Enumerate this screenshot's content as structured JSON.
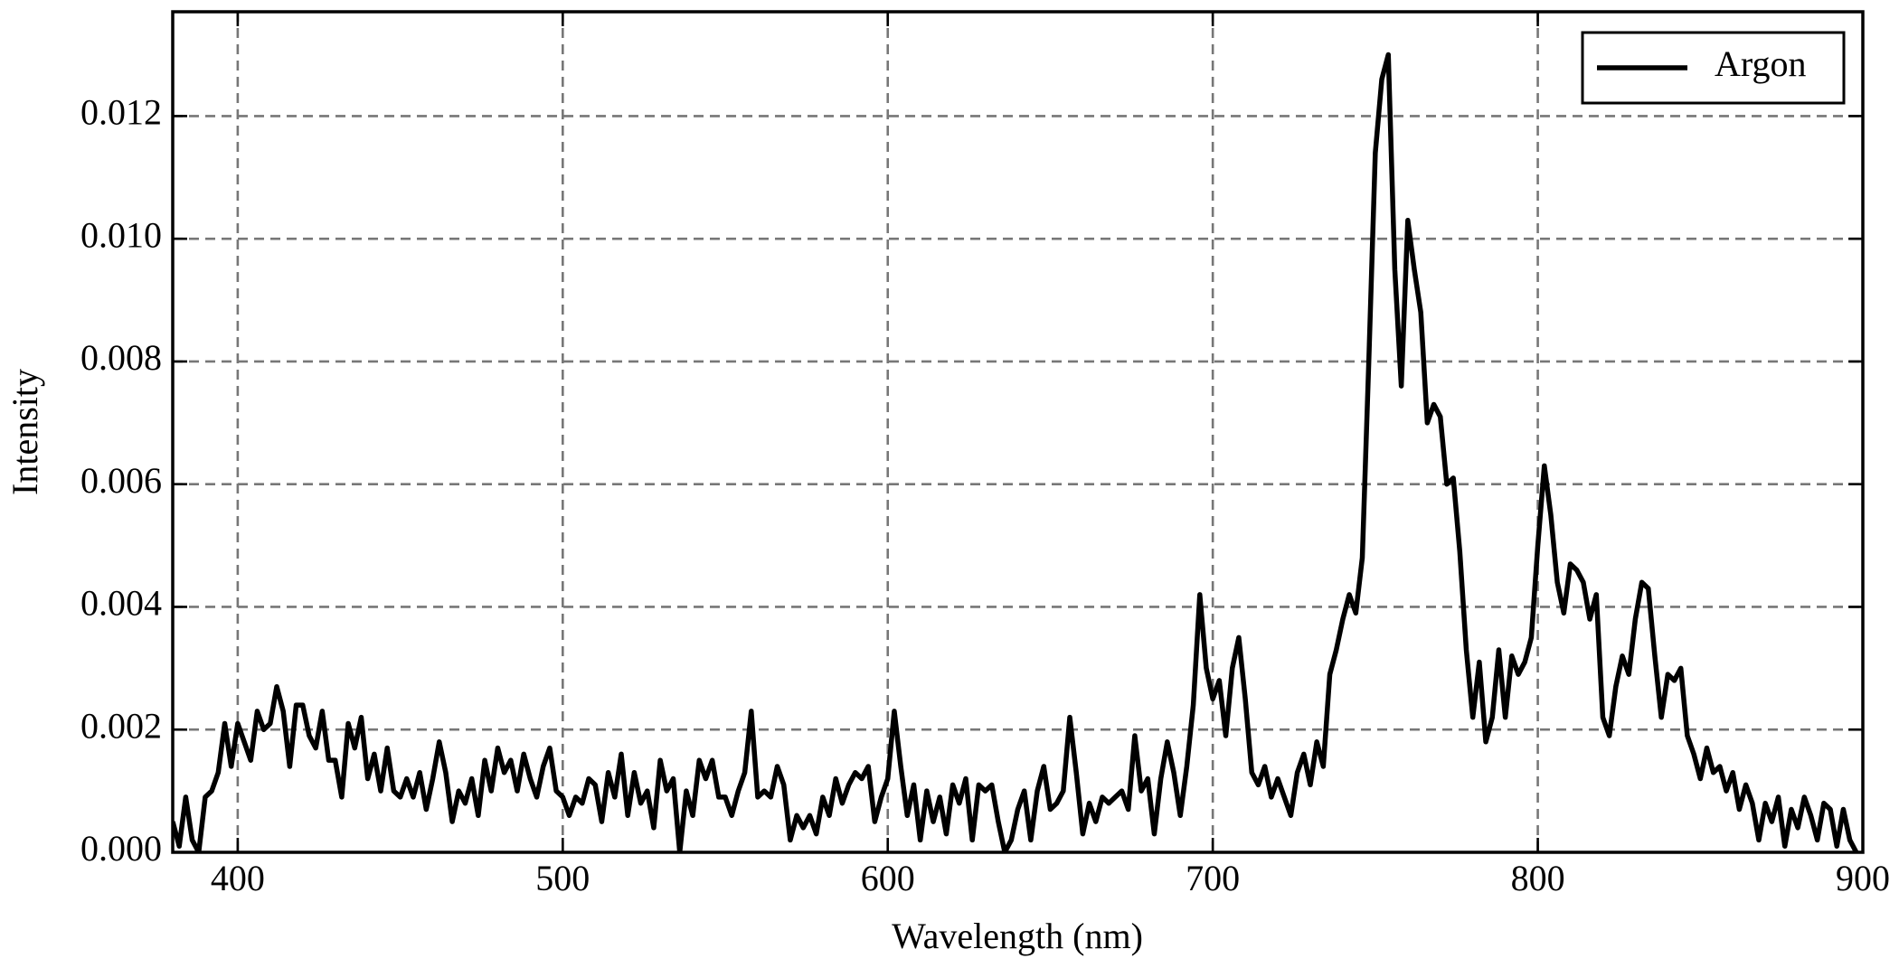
{
  "chart_data": {
    "type": "line",
    "xlabel": "Wavelength (nm)",
    "ylabel": "Intensity",
    "x": [
      380,
      382,
      384,
      386,
      388,
      390,
      392,
      394,
      396,
      398,
      400,
      402,
      404,
      406,
      408,
      410,
      412,
      414,
      416,
      418,
      420,
      422,
      424,
      426,
      428,
      430,
      432,
      434,
      436,
      438,
      440,
      442,
      444,
      446,
      448,
      450,
      452,
      454,
      456,
      458,
      460,
      462,
      464,
      466,
      468,
      470,
      472,
      474,
      476,
      478,
      480,
      482,
      484,
      486,
      488,
      490,
      492,
      494,
      496,
      498,
      500,
      502,
      504,
      506,
      508,
      510,
      512,
      514,
      516,
      518,
      520,
      522,
      524,
      526,
      528,
      530,
      532,
      534,
      536,
      538,
      540,
      542,
      544,
      546,
      548,
      550,
      552,
      554,
      556,
      558,
      560,
      562,
      564,
      566,
      568,
      570,
      572,
      574,
      576,
      578,
      580,
      582,
      584,
      586,
      588,
      590,
      592,
      594,
      596,
      598,
      600,
      602,
      604,
      606,
      608,
      610,
      612,
      614,
      616,
      618,
      620,
      622,
      624,
      626,
      628,
      630,
      632,
      634,
      636,
      638,
      640,
      642,
      644,
      646,
      648,
      650,
      652,
      654,
      656,
      658,
      660,
      662,
      664,
      666,
      668,
      670,
      672,
      674,
      676,
      678,
      680,
      682,
      684,
      686,
      688,
      690,
      692,
      694,
      696,
      698,
      700,
      702,
      704,
      706,
      708,
      710,
      712,
      714,
      716,
      718,
      720,
      722,
      724,
      726,
      728,
      730,
      732,
      734,
      736,
      738,
      740,
      742,
      744,
      746,
      748,
      750,
      752,
      754,
      756,
      758,
      760,
      762,
      764,
      766,
      768,
      770,
      772,
      774,
      776,
      778,
      780,
      782,
      784,
      786,
      788,
      790,
      792,
      794,
      796,
      798,
      800,
      802,
      804,
      806,
      808,
      810,
      812,
      814,
      816,
      818,
      820,
      822,
      824,
      826,
      828,
      830,
      832,
      834,
      836,
      838,
      840,
      842,
      844,
      846,
      848,
      850,
      852,
      854,
      856,
      858,
      860,
      862,
      864,
      866,
      868,
      870,
      872,
      874,
      876,
      878,
      880,
      882,
      884,
      886,
      888,
      890,
      892,
      894,
      896,
      898
    ],
    "series": [
      {
        "name": "Argon",
        "color": "#000000",
        "values": [
          0.0005,
          0.0001,
          0.0009,
          0.0002,
          0,
          0.0009,
          0.001,
          0.0013,
          0.0021,
          0.0014,
          0.0021,
          0.0018,
          0.0015,
          0.0023,
          0.002,
          0.0021,
          0.0027,
          0.0023,
          0.0014,
          0.0024,
          0.0024,
          0.0019,
          0.0017,
          0.0023,
          0.0015,
          0.0015,
          0.0009,
          0.0021,
          0.0017,
          0.0022,
          0.0012,
          0.0016,
          0.001,
          0.0017,
          0.001,
          0.0009,
          0.0012,
          0.0009,
          0.0013,
          0.0007,
          0.0012,
          0.0018,
          0.0013,
          0.0005,
          0.001,
          0.0008,
          0.0012,
          0.0006,
          0.0015,
          0.001,
          0.0017,
          0.0013,
          0.0015,
          0.001,
          0.0016,
          0.0012,
          0.0009,
          0.0014,
          0.0017,
          0.001,
          0.0009,
          0.0006,
          0.0009,
          0.0008,
          0.0012,
          0.0011,
          0.0005,
          0.0013,
          0.0009,
          0.0016,
          0.0006,
          0.0013,
          0.0008,
          0.001,
          0.0004,
          0.0015,
          0.001,
          0.0012,
          0,
          0.001,
          0.0006,
          0.0015,
          0.0012,
          0.0015,
          0.0009,
          0.0009,
          0.0006,
          0.001,
          0.0013,
          0.0023,
          0.0009,
          0.001,
          0.0009,
          0.0014,
          0.0011,
          0.0002,
          0.0006,
          0.0004,
          0.0006,
          0.0003,
          0.0009,
          0.0006,
          0.0012,
          0.0008,
          0.0011,
          0.0013,
          0.0012,
          0.0014,
          0.0005,
          0.0009,
          0.0012,
          0.0023,
          0.0014,
          0.0006,
          0.0011,
          0.0002,
          0.001,
          0.0005,
          0.0009,
          0.0003,
          0.0011,
          0.0008,
          0.0012,
          0.0002,
          0.0011,
          0.001,
          0.0011,
          0.0005,
          0,
          0.0002,
          0.0007,
          0.001,
          0.0002,
          0.001,
          0.0014,
          0.0007,
          0.0008,
          0.001,
          0.0022,
          0.0013,
          0.0003,
          0.0008,
          0.0005,
          0.0009,
          0.0008,
          0.0009,
          0.001,
          0.0007,
          0.0019,
          0.001,
          0.0012,
          0.0003,
          0.0012,
          0.0018,
          0.0013,
          0.0006,
          0.0014,
          0.0024,
          0.0042,
          0.003,
          0.0025,
          0.0028,
          0.0019,
          0.003,
          0.0035,
          0.0025,
          0.0013,
          0.0011,
          0.0014,
          0.0009,
          0.0012,
          0.0009,
          0.0006,
          0.0013,
          0.0016,
          0.0011,
          0.0018,
          0.0014,
          0.0029,
          0.0033,
          0.0038,
          0.0042,
          0.0039,
          0.0048,
          0.008,
          0.0114,
          0.0126,
          0.013,
          0.0095,
          0.0076,
          0.0103,
          0.0095,
          0.0088,
          0.007,
          0.0073,
          0.0071,
          0.006,
          0.0061,
          0.0049,
          0.0033,
          0.0022,
          0.0031,
          0.0018,
          0.0022,
          0.0033,
          0.0022,
          0.0032,
          0.0029,
          0.0031,
          0.0035,
          0.005,
          0.0063,
          0.0055,
          0.0044,
          0.0039,
          0.0047,
          0.0046,
          0.0044,
          0.0038,
          0.0042,
          0.0022,
          0.0019,
          0.0027,
          0.0032,
          0.0029,
          0.0038,
          0.0044,
          0.0043,
          0.0032,
          0.0022,
          0.0029,
          0.0028,
          0.003,
          0.0019,
          0.0016,
          0.0012,
          0.0017,
          0.0013,
          0.0014,
          0.001,
          0.0013,
          0.0007,
          0.0011,
          0.0008,
          0.0002,
          0.0008,
          0.0005,
          0.0009,
          0.0001,
          0.0007,
          0.0004,
          0.0009,
          0.0006,
          0.0002,
          0.0008,
          0.0007,
          0.0001,
          0.0007,
          0.0002,
          0
        ]
      }
    ],
    "xlim": [
      380,
      900
    ],
    "ylim": [
      0,
      0.0137
    ],
    "xticks": [
      400,
      500,
      600,
      700,
      800,
      900
    ],
    "yticks": [
      {
        "value": 0,
        "label": "0.000"
      },
      {
        "value": 0.002,
        "label": "0.002"
      },
      {
        "value": 0.004,
        "label": "0.004"
      },
      {
        "value": 0.006,
        "label": "0.006"
      },
      {
        "value": 0.008,
        "label": "0.008"
      },
      {
        "value": 0.01,
        "label": "0.010"
      },
      {
        "value": 0.012,
        "label": "0.012"
      }
    ],
    "grid": true,
    "legend": "upper right"
  }
}
